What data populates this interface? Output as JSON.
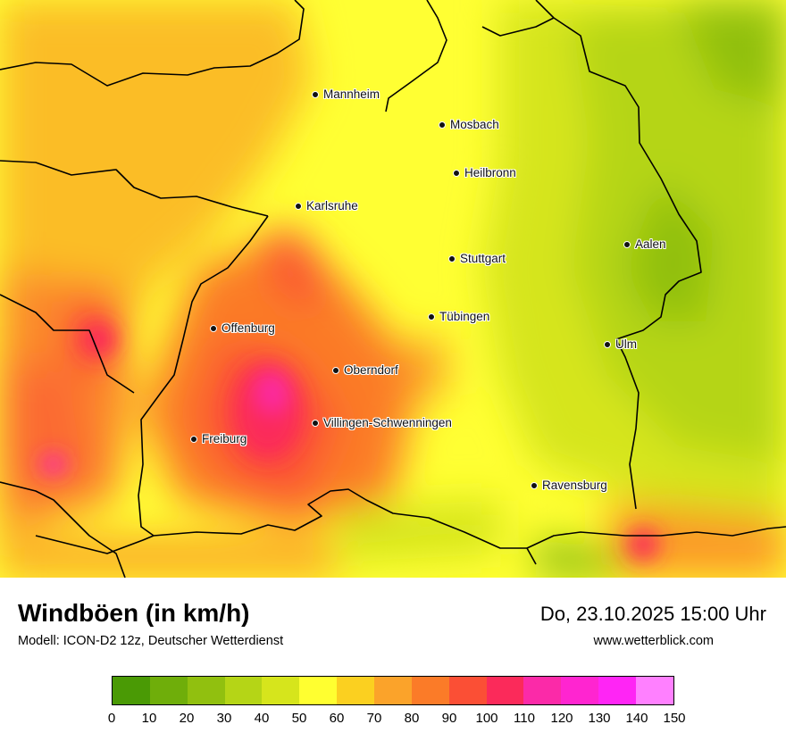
{
  "map": {
    "cities": [
      {
        "name": "Mannheim"
      },
      {
        "name": "Mosbach"
      },
      {
        "name": "Heilbronn"
      },
      {
        "name": "Karlsruhe"
      },
      {
        "name": "Aalen"
      },
      {
        "name": "Stuttgart"
      },
      {
        "name": "Tübingen"
      },
      {
        "name": "Offenburg"
      },
      {
        "name": "Ulm"
      },
      {
        "name": "Oberndorf"
      },
      {
        "name": "Villingen-Schwenningen"
      },
      {
        "name": "Freiburg"
      },
      {
        "name": "Ravensburg"
      }
    ]
  },
  "footer": {
    "title": "Windböen (in km/h)",
    "model": "Modell: ICON-D2 12z, Deutscher Wetterdienst",
    "datetime": "Do, 23.10.2025 15:00 Uhr",
    "website": "www.wetterblick.com"
  },
  "legend": {
    "colors": [
      "#4a9a05",
      "#6fae0a",
      "#91c00f",
      "#b5d516",
      "#d6e51c",
      "#ffff30",
      "#fbd020",
      "#fba32a",
      "#fb7b28",
      "#fb4f35",
      "#fb2a5a",
      "#fb2aa8",
      "#ff25d0",
      "#ff25f5",
      "#ff80ff"
    ],
    "ticks": [
      "0",
      "10",
      "20",
      "30",
      "40",
      "50",
      "60",
      "70",
      "80",
      "90",
      "100",
      "110",
      "120",
      "130",
      "140",
      "150"
    ]
  }
}
